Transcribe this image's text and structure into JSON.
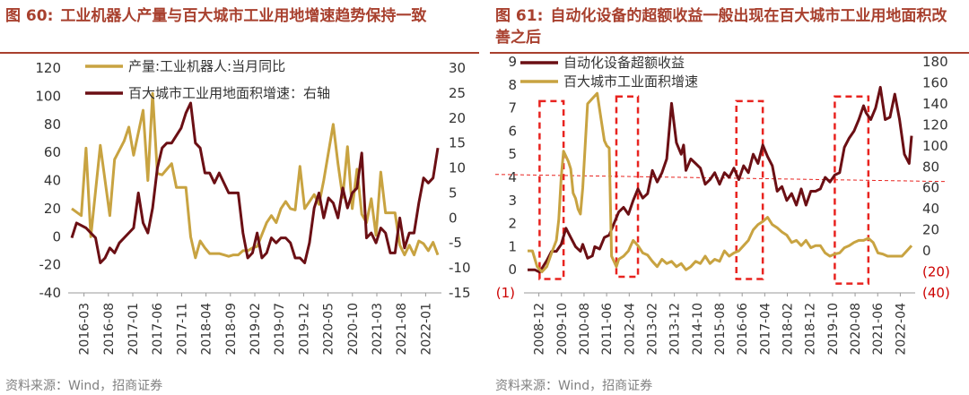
{
  "charts_meta": {
    "left": {
      "figure": "图 60:",
      "title": "工业机器人产量与百大城市工业用地增速趋势保持一致",
      "source": "资料来源：Wind，招商证券"
    },
    "right": {
      "figure": "图 61:",
      "title": "自动化设备的超额收益一般出现在百大城市工业用地面积改善之后",
      "source": "资料来源：Wind，招商证券"
    }
  },
  "colors": {
    "gold": "#c8a341",
    "dark_red": "#6b0f14",
    "title_red": "#a8402e",
    "dash_red": "#e8231f",
    "axis": "#999999",
    "text": "#333333"
  },
  "chart_data": [
    {
      "type": "line",
      "title": "工业机器人产量与百大城市工业用地增速趋势保持一致",
      "x_tick_labels": [
        "2016-03",
        "2016-08",
        "2017-01",
        "2017-06",
        "2017-11",
        "2018-04",
        "2018-09",
        "2019-02",
        "2019-07",
        "2019-12",
        "2020-05",
        "2020-10",
        "2021-03",
        "2021-08",
        "2022-01"
      ],
      "x_range": [
        0,
        77
      ],
      "y_left": {
        "min": -40,
        "max": 120,
        "ticks": [
          -40,
          -20,
          0,
          20,
          40,
          60,
          80,
          100,
          120
        ]
      },
      "y_right": {
        "min": -15,
        "max": 30,
        "ticks": [
          -15,
          -10,
          -5,
          0,
          5,
          10,
          15,
          20,
          25,
          30
        ],
        "labels": [
          "-15",
          "-10",
          "-5",
          "0",
          "5",
          "10",
          "15",
          "20",
          "25",
          "30"
        ]
      },
      "series": [
        {
          "name": "产量:工业机器人:当月同比",
          "axis": "left",
          "color": "gold",
          "x": [
            0,
            2,
            3,
            4,
            6,
            8,
            9,
            11,
            12,
            13,
            15,
            16,
            17,
            18,
            19,
            20,
            21,
            22,
            24,
            25,
            26,
            27,
            28,
            29,
            30,
            31,
            32,
            33,
            34,
            35,
            36,
            37,
            38,
            39,
            41,
            42,
            43,
            44,
            45,
            46,
            47,
            48,
            49,
            51,
            52,
            53,
            54,
            55,
            56,
            57,
            58,
            59,
            60,
            61,
            62,
            63,
            64,
            65,
            66,
            67,
            68,
            69,
            70,
            71,
            72,
            73,
            74,
            75,
            76,
            77
          ],
          "values": [
            20,
            15,
            63,
            0,
            65,
            15,
            55,
            68,
            78,
            58,
            90,
            40,
            102,
            45,
            44,
            48,
            52,
            35,
            35,
            0,
            -15,
            -3,
            -8,
            -12,
            -12,
            -12,
            -13,
            -14,
            -13,
            -13,
            -10,
            -10,
            -8,
            -7,
            10,
            15,
            10,
            20,
            25,
            20,
            19,
            50,
            20,
            30,
            23,
            40,
            60,
            80,
            52,
            28,
            64,
            20,
            48,
            16,
            10,
            27,
            1,
            46,
            17,
            17,
            17,
            -6,
            -13,
            -6,
            -13,
            -3,
            -5,
            -10,
            -4,
            -13
          ]
        },
        {
          "name": "百大城市工业用地面积增速：右轴",
          "axis": "right",
          "color": "dark_red",
          "x": [
            0,
            1,
            3,
            4,
            5,
            6,
            7,
            8,
            9,
            10,
            11,
            13,
            14,
            15,
            16,
            17,
            18,
            19,
            20,
            21,
            23,
            24,
            25,
            26,
            27,
            28,
            29,
            30,
            31,
            33,
            35,
            36,
            37,
            38,
            39,
            40,
            41,
            42,
            43,
            44,
            45,
            46,
            47,
            48,
            49,
            50,
            51,
            52,
            53,
            54,
            55,
            56,
            57,
            58,
            59,
            60,
            61,
            62,
            63,
            64,
            65,
            66,
            67,
            68,
            69,
            70,
            71,
            72,
            73,
            74,
            75,
            76,
            77
          ],
          "values": [
            -4,
            -1,
            -2,
            -3,
            -4,
            -9,
            -8,
            -6,
            -7,
            -5,
            -4,
            -2,
            5,
            -1,
            -3,
            2,
            10,
            14,
            15,
            15,
            18,
            21,
            23,
            15,
            14,
            9,
            9,
            7,
            9,
            5,
            5,
            -3,
            -8,
            -7,
            -3,
            -8,
            -7,
            -4,
            -5,
            -4,
            -4,
            -5,
            -8,
            -8,
            -9,
            -5,
            2,
            5,
            0,
            4,
            3,
            0,
            6,
            2,
            5,
            6,
            13,
            -4,
            -3,
            -5,
            -2,
            -3,
            -7,
            -7,
            0,
            -6,
            -3,
            -3,
            3,
            8,
            7,
            8,
            14
          ]
        }
      ]
    },
    {
      "type": "line",
      "title": "自动化设备的超额收益一般出现在百大城市工业用地面积改善之后",
      "x_tick_labels": [
        "2008-12",
        "2009-10",
        "2010-08",
        "2011-06",
        "2012-04",
        "2013-02",
        "2013-12",
        "2014-10",
        "2015-08",
        "2016-06",
        "2017-04",
        "2018-02",
        "2018-12",
        "2019-10",
        "2020-08",
        "2021-06",
        "2022-04"
      ],
      "x_range": [
        0,
        160
      ],
      "y_left": {
        "min": -1,
        "max": 9,
        "ticks": [
          0,
          1,
          2,
          3,
          4,
          5,
          6,
          7,
          8,
          9
        ],
        "negative_labels": [
          {
            "value": -1,
            "label": "(1)"
          }
        ]
      },
      "y_right": {
        "min": -40,
        "max": 180,
        "ticks": [
          0,
          20,
          40,
          60,
          80,
          100,
          120,
          140,
          160,
          180
        ],
        "negative_labels": [
          {
            "value": -20,
            "label": "(20)"
          },
          {
            "value": -40,
            "label": "(40)"
          }
        ]
      },
      "reference_line": {
        "axis": "left",
        "value": 4.05,
        "style": "dashed",
        "color": "dash_red"
      },
      "highlight_boxes": [
        {
          "x_start": 5,
          "x_end": 15,
          "y_low": -0.4,
          "y_high": 7.3
        },
        {
          "x_start": 37,
          "x_end": 46,
          "y_low": -0.3,
          "y_high": 7.5
        },
        {
          "x_start": 87,
          "x_end": 98,
          "y_low": -0.4,
          "y_high": 7.3
        },
        {
          "x_start": 128,
          "x_end": 142,
          "y_low": -0.6,
          "y_high": 7.5
        }
      ],
      "series": [
        {
          "name": "自动化设备超额收益",
          "axis": "left",
          "color": "dark_red",
          "x": [
            0,
            3,
            5,
            8,
            10,
            12,
            14,
            16,
            18,
            20,
            22,
            23,
            25,
            27,
            28,
            30,
            32,
            34,
            36,
            38,
            40,
            42,
            44,
            46,
            48,
            50,
            52,
            54,
            56,
            58,
            60,
            62,
            64,
            65,
            66,
            68,
            70,
            72,
            74,
            76,
            78,
            80,
            82,
            84,
            86,
            88,
            90,
            92,
            94,
            96,
            98,
            100,
            102,
            104,
            106,
            108,
            110,
            112,
            114,
            116,
            118,
            120,
            122,
            124,
            126,
            128,
            130,
            132,
            134,
            136,
            138,
            140,
            141,
            143,
            145,
            147,
            149,
            151,
            153,
            155,
            157,
            159,
            160
          ],
          "values": [
            0,
            0,
            -0.1,
            0.4,
            0.8,
            0.8,
            1.1,
            1.8,
            1.4,
            1.0,
            0.8,
            1.1,
            0.5,
            0.6,
            1.0,
            0.9,
            1.4,
            1.5,
            2.0,
            2.5,
            2.7,
            2.4,
            3.0,
            3.5,
            3.1,
            3.3,
            4.3,
            3.8,
            4.2,
            4.8,
            7.2,
            5.5,
            5.0,
            5.4,
            4.3,
            4.8,
            4.6,
            4.4,
            3.7,
            3.9,
            4.2,
            3.7,
            4.2,
            4.0,
            4.4,
            3.9,
            4.5,
            4.2,
            5.0,
            4.6,
            5.4,
            4.9,
            4.5,
            3.4,
            3.6,
            3.0,
            3.3,
            2.8,
            3.5,
            2.8,
            3.4,
            3.4,
            3.5,
            4.0,
            3.8,
            4.1,
            4.2,
            5.3,
            5.7,
            6.0,
            6.5,
            7.1,
            6.8,
            6.5,
            7.0,
            7.9,
            6.5,
            6.6,
            7.6,
            6.5,
            5.0,
            4.6,
            5.8
          ]
        },
        {
          "name": "百大城市工业面积增速",
          "axis": "right",
          "color": "gold",
          "x": [
            0,
            2,
            4,
            6,
            8,
            10,
            12,
            13,
            14,
            15,
            16,
            17,
            18,
            19,
            20,
            21,
            22,
            23,
            24,
            25,
            27,
            29,
            31,
            32,
            33,
            34,
            35,
            36,
            37,
            38,
            40,
            42,
            44,
            46,
            48,
            50,
            52,
            54,
            56,
            58,
            60,
            62,
            64,
            66,
            68,
            70,
            72,
            74,
            76,
            78,
            80,
            82,
            84,
            86,
            88,
            90,
            92,
            94,
            96,
            98,
            100,
            102,
            104,
            106,
            108,
            110,
            112,
            114,
            116,
            118,
            120,
            122,
            124,
            126,
            128,
            130,
            132,
            134,
            136,
            138,
            140,
            142,
            144,
            146,
            148,
            150,
            152,
            154,
            156,
            158,
            160
          ],
          "values": [
            0,
            0,
            -15,
            -20,
            -15,
            -2,
            10,
            30,
            70,
            95,
            90,
            85,
            78,
            55,
            50,
            40,
            35,
            60,
            100,
            140,
            145,
            150,
            120,
            105,
            100,
            98,
            -5,
            -10,
            -15,
            -8,
            -5,
            0,
            10,
            5,
            -2,
            -4,
            -10,
            -15,
            -8,
            -12,
            -10,
            -15,
            -12,
            -18,
            -15,
            -10,
            -12,
            -5,
            -12,
            -8,
            -10,
            0,
            -5,
            -2,
            0,
            5,
            10,
            20,
            25,
            28,
            32,
            25,
            22,
            18,
            15,
            8,
            10,
            5,
            10,
            3,
            5,
            5,
            -2,
            -5,
            -3,
            -2,
            3,
            5,
            8,
            10,
            10,
            12,
            8,
            -2,
            -3,
            -5,
            -5,
            -5,
            -5,
            0,
            5
          ]
        }
      ]
    }
  ]
}
